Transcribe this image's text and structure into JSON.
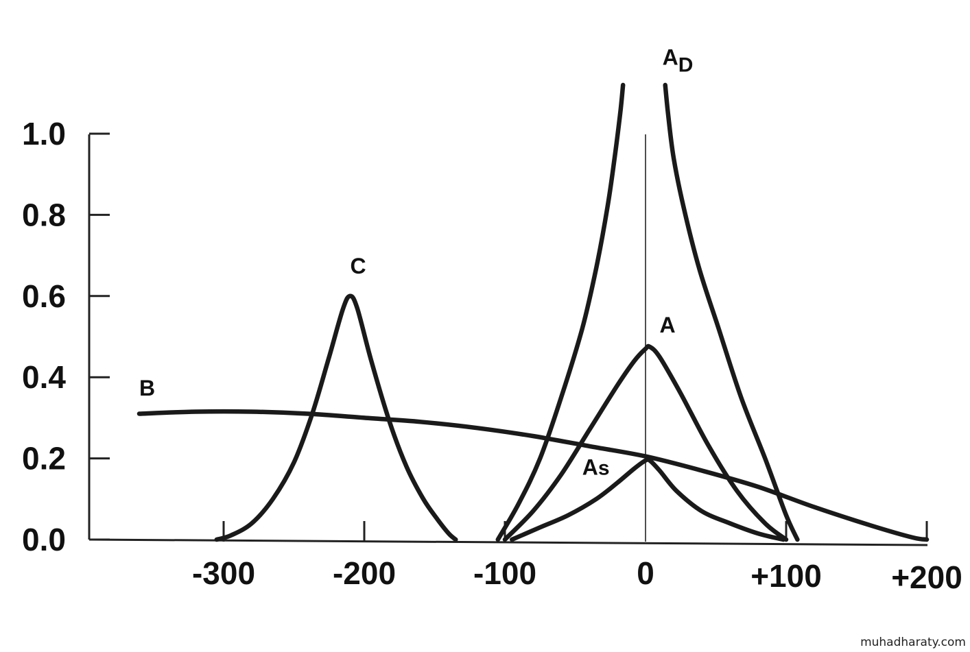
{
  "chart_data": {
    "type": "line",
    "title": "",
    "xlabel": "",
    "ylabel": "",
    "xlim": [
      -370,
      205
    ],
    "ylim": [
      0,
      1.2
    ],
    "grid": false,
    "legend": "none",
    "yticks": [
      {
        "value": 0.0,
        "label": "0.0"
      },
      {
        "value": 0.2,
        "label": "0.2"
      },
      {
        "value": 0.4,
        "label": "0.4"
      },
      {
        "value": 0.6,
        "label": "0.6"
      },
      {
        "value": 0.8,
        "label": "0.8"
      },
      {
        "value": 1.0,
        "label": "1.0"
      }
    ],
    "xticks": [
      {
        "value": -300,
        "label": "-300"
      },
      {
        "value": -200,
        "label": "-200"
      },
      {
        "value": -100,
        "label": "-100"
      },
      {
        "value": 0,
        "label": "0"
      },
      {
        "value": 100,
        "label": "+100"
      },
      {
        "value": 200,
        "label": "+200"
      }
    ],
    "series": [
      {
        "name": "B",
        "label_main": "B",
        "label_sub": "",
        "x": [
          -360,
          -320,
          -280,
          -240,
          -200,
          -160,
          -120,
          -80,
          -40,
          0,
          40,
          80,
          120,
          160,
          190,
          200
        ],
        "y": [
          0.31,
          0.315,
          0.315,
          0.31,
          0.3,
          0.29,
          0.275,
          0.255,
          0.23,
          0.205,
          0.17,
          0.13,
          0.08,
          0.035,
          0.005,
          0.0
        ]
      },
      {
        "name": "C",
        "label_main": "C",
        "label_sub": "",
        "x": [
          -305,
          -295,
          -280,
          -265,
          -250,
          -237,
          -225,
          -215,
          -210,
          -205,
          -195,
          -182,
          -170,
          -158,
          -148,
          -140,
          -135
        ],
        "y": [
          0.0,
          0.01,
          0.04,
          0.1,
          0.19,
          0.31,
          0.45,
          0.57,
          0.6,
          0.57,
          0.44,
          0.29,
          0.18,
          0.1,
          0.05,
          0.015,
          0.0
        ]
      },
      {
        "name": "AD left",
        "label_main": "A",
        "label_sub": "D",
        "x": [
          -105,
          -90,
          -75,
          -60,
          -45,
          -35,
          -27,
          -22,
          -18,
          -16
        ],
        "y": [
          0.0,
          0.09,
          0.2,
          0.35,
          0.52,
          0.67,
          0.82,
          0.94,
          1.05,
          1.12
        ]
      },
      {
        "name": "AD right",
        "label_main": "",
        "label_sub": "",
        "x": [
          14,
          16,
          20,
          27,
          38,
          52,
          68,
          85,
          100,
          108
        ],
        "y": [
          1.12,
          1.05,
          0.94,
          0.82,
          0.67,
          0.52,
          0.35,
          0.2,
          0.06,
          0.0
        ]
      },
      {
        "name": "A",
        "label_main": "A",
        "label_sub": "",
        "x": [
          -100,
          -80,
          -60,
          -40,
          -20,
          -8,
          0,
          3,
          10,
          25,
          45,
          65,
          85,
          100
        ],
        "y": [
          0.0,
          0.07,
          0.16,
          0.27,
          0.38,
          0.44,
          0.47,
          0.475,
          0.45,
          0.36,
          0.23,
          0.12,
          0.04,
          0.0
        ]
      },
      {
        "name": "As",
        "label_main": "A",
        "label_sub": "s",
        "x": [
          -95,
          -75,
          -55,
          -35,
          -20,
          -8,
          0,
          3,
          10,
          22,
          40,
          60,
          80,
          98
        ],
        "y": [
          0.0,
          0.03,
          0.06,
          0.1,
          0.14,
          0.175,
          0.195,
          0.195,
          0.17,
          0.12,
          0.07,
          0.04,
          0.015,
          0.0
        ]
      }
    ]
  },
  "watermark": "muhadharaty.com"
}
